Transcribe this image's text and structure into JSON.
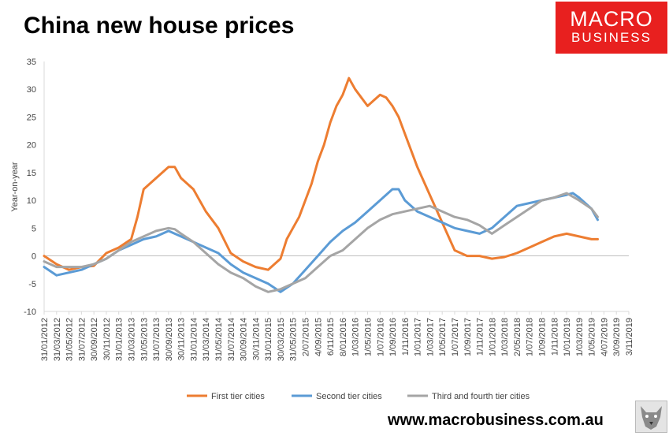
{
  "title": "China new house prices",
  "logo": {
    "line1": "MACRO",
    "line2": "BUSINESS",
    "bg_color": "#e8201f"
  },
  "website": "www.macrobusiness.com.au",
  "chart_data": {
    "type": "line",
    "title": "China new house prices",
    "xlabel": "",
    "ylabel": "Year-on-year",
    "ylim": [
      -10,
      35
    ],
    "yticks": [
      -10,
      -5,
      0,
      5,
      10,
      15,
      20,
      25,
      30,
      35
    ],
    "x_tick_labels": [
      "31/01/2012",
      "31/03/2012",
      "31/05/2012",
      "31/07/2012",
      "30/09/2012",
      "30/11/2012",
      "31/01/2013",
      "31/03/2013",
      "31/05/2013",
      "31/07/2013",
      "30/09/2013",
      "30/11/2013",
      "31/01/2014",
      "31/03/2014",
      "31/05/2014",
      "31/07/2014",
      "30/09/2014",
      "30/11/2014",
      "31/01/2015",
      "30/03/2015",
      "31/05/2015",
      "2/07/2015",
      "4/09/2015",
      "6/11/2015",
      "8/01/2016",
      "1/03/2016",
      "1/05/2016",
      "1/07/2016",
      "1/09/2016",
      "1/11/2016",
      "1/01/2017",
      "1/03/2017",
      "1/05/2017",
      "1/07/2017",
      "1/09/2017",
      "1/11/2017",
      "1/01/2018",
      "1/03/2018",
      "2/05/2018",
      "1/07/2018",
      "1/09/2018",
      "1/11/2018",
      "1/01/2019",
      "1/03/2019",
      "1/05/2019",
      "4/07/2019",
      "3/09/2019",
      "3/11/2019"
    ],
    "legend_position": "bottom",
    "series": [
      {
        "name": "First tier cities",
        "color": "#ed7d31",
        "points": [
          [
            0,
            0
          ],
          [
            1,
            -1.5
          ],
          [
            2,
            -2.5
          ],
          [
            3,
            -2
          ],
          [
            4,
            -1.8
          ],
          [
            5,
            0.5
          ],
          [
            6,
            1.5
          ],
          [
            7,
            3
          ],
          [
            7.5,
            7
          ],
          [
            8,
            12
          ],
          [
            9,
            14
          ],
          [
            10,
            16
          ],
          [
            10.5,
            16
          ],
          [
            11,
            14
          ],
          [
            12,
            12
          ],
          [
            13,
            8
          ],
          [
            14,
            5
          ],
          [
            15,
            0.5
          ],
          [
            16,
            -1
          ],
          [
            17,
            -2
          ],
          [
            18,
            -2.5
          ],
          [
            19,
            -0.5
          ],
          [
            19.5,
            3
          ],
          [
            20,
            5
          ],
          [
            20.5,
            7
          ],
          [
            21,
            10
          ],
          [
            21.5,
            13
          ],
          [
            22,
            17
          ],
          [
            22.5,
            20
          ],
          [
            23,
            24
          ],
          [
            23.5,
            27
          ],
          [
            24,
            29
          ],
          [
            24.5,
            32
          ],
          [
            25,
            30
          ],
          [
            25.5,
            28.5
          ],
          [
            26,
            27
          ],
          [
            26.5,
            28
          ],
          [
            27,
            29
          ],
          [
            27.5,
            28.5
          ],
          [
            28,
            27
          ],
          [
            28.5,
            25
          ],
          [
            29,
            22
          ],
          [
            29.5,
            19
          ],
          [
            30,
            16
          ],
          [
            31,
            11
          ],
          [
            32,
            6
          ],
          [
            33,
            1
          ],
          [
            34,
            0
          ],
          [
            35,
            0
          ],
          [
            36,
            -0.5
          ],
          [
            37,
            -0.2
          ],
          [
            38,
            0.5
          ],
          [
            39,
            1.5
          ],
          [
            40,
            2.5
          ],
          [
            41,
            3.5
          ],
          [
            42,
            4
          ],
          [
            43,
            3.5
          ],
          [
            44,
            3
          ],
          [
            44.5,
            3
          ]
        ]
      },
      {
        "name": "Second tier cities",
        "color": "#5b9bd5",
        "points": [
          [
            0,
            -2
          ],
          [
            1,
            -3.5
          ],
          [
            2,
            -3
          ],
          [
            3,
            -2.5
          ],
          [
            4,
            -1.5
          ],
          [
            5,
            -0.5
          ],
          [
            6,
            1
          ],
          [
            7,
            2
          ],
          [
            8,
            3
          ],
          [
            9,
            3.5
          ],
          [
            10,
            4.5
          ],
          [
            11,
            3.5
          ],
          [
            12,
            2.5
          ],
          [
            13,
            1.5
          ],
          [
            14,
            0.5
          ],
          [
            15,
            -1.5
          ],
          [
            16,
            -3
          ],
          [
            17,
            -4
          ],
          [
            18,
            -5
          ],
          [
            19,
            -6.5
          ],
          [
            20,
            -5
          ],
          [
            21,
            -2.5
          ],
          [
            22,
            0
          ],
          [
            23,
            2.5
          ],
          [
            24,
            4.5
          ],
          [
            25,
            6
          ],
          [
            26,
            8
          ],
          [
            27,
            10
          ],
          [
            28,
            12
          ],
          [
            28.5,
            12
          ],
          [
            29,
            10
          ],
          [
            30,
            8
          ],
          [
            31,
            7
          ],
          [
            32,
            6
          ],
          [
            33,
            5
          ],
          [
            34,
            4.5
          ],
          [
            35,
            4
          ],
          [
            36,
            5
          ],
          [
            37,
            7
          ],
          [
            38,
            9
          ],
          [
            39,
            9.5
          ],
          [
            40,
            10
          ],
          [
            41,
            10.5
          ],
          [
            42,
            11
          ],
          [
            42.5,
            11.3
          ],
          [
            43,
            10.5
          ],
          [
            44,
            8.5
          ],
          [
            44.5,
            6.5
          ]
        ]
      },
      {
        "name": "Third and fourth tier cities",
        "color": "#a5a5a5",
        "points": [
          [
            0,
            -1
          ],
          [
            1,
            -2
          ],
          [
            2,
            -2
          ],
          [
            3,
            -2
          ],
          [
            4,
            -1.5
          ],
          [
            5,
            -0.5
          ],
          [
            6,
            1
          ],
          [
            7,
            2.5
          ],
          [
            8,
            3.5
          ],
          [
            9,
            4.5
          ],
          [
            10,
            5
          ],
          [
            10.5,
            4.8
          ],
          [
            11,
            4
          ],
          [
            12,
            2.5
          ],
          [
            13,
            0.5
          ],
          [
            14,
            -1.5
          ],
          [
            15,
            -3
          ],
          [
            16,
            -4
          ],
          [
            17,
            -5.5
          ],
          [
            18,
            -6.5
          ],
          [
            19,
            -6
          ],
          [
            20,
            -5
          ],
          [
            21,
            -4
          ],
          [
            22,
            -2
          ],
          [
            23,
            0
          ],
          [
            24,
            1
          ],
          [
            25,
            3
          ],
          [
            26,
            5
          ],
          [
            27,
            6.5
          ],
          [
            28,
            7.5
          ],
          [
            29,
            8
          ],
          [
            30,
            8.5
          ],
          [
            31,
            9
          ],
          [
            32,
            8
          ],
          [
            33,
            7
          ],
          [
            34,
            6.5
          ],
          [
            35,
            5.5
          ],
          [
            36,
            4
          ],
          [
            37,
            5.5
          ],
          [
            38,
            7
          ],
          [
            39,
            8.5
          ],
          [
            40,
            10
          ],
          [
            41,
            10.5
          ],
          [
            42,
            11.3
          ],
          [
            43,
            10
          ],
          [
            44,
            8.5
          ],
          [
            44.5,
            7
          ]
        ]
      }
    ]
  }
}
